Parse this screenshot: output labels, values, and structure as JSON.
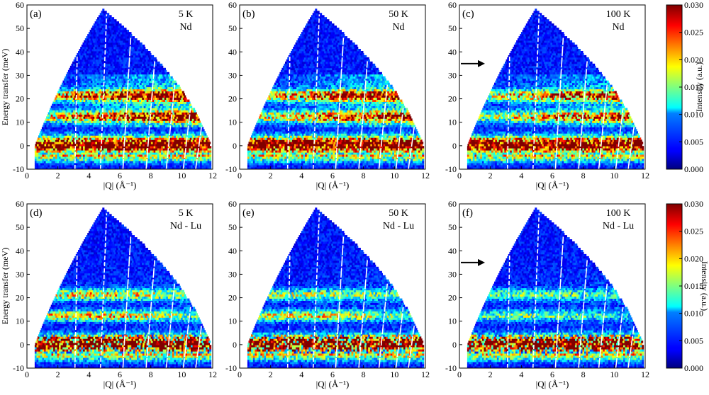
{
  "chart_data": [
    {
      "type": "heatmap",
      "panel_label": "(a)",
      "temperature": "5 K",
      "sample": "Nd",
      "xlabel": "|Q| (Å⁻¹)",
      "ylabel": "Energy transfer (meV)",
      "xlim": [
        0,
        12
      ],
      "ylim": [
        -10,
        60
      ],
      "xticks": [
        0,
        2,
        4,
        6,
        8,
        10,
        12
      ],
      "yticks": [
        -10,
        0,
        10,
        20,
        30,
        40,
        50,
        60
      ],
      "arrow_energy": null,
      "bands": [
        {
          "energy": 0,
          "intensity": 0.03
        },
        {
          "energy": 12,
          "intensity": 0.022
        },
        {
          "energy": 21,
          "intensity": 0.024
        }
      ]
    },
    {
      "type": "heatmap",
      "panel_label": "(b)",
      "temperature": "50 K",
      "sample": "Nd",
      "xlabel": "|Q| (Å⁻¹)",
      "ylabel": "",
      "xlim": [
        0,
        12
      ],
      "ylim": [
        -10,
        60
      ],
      "xticks": [
        0,
        2,
        4,
        6,
        8,
        10,
        12
      ],
      "yticks": [
        -10,
        0,
        10,
        20,
        30,
        40,
        50,
        60
      ],
      "arrow_energy": null,
      "bands": [
        {
          "energy": 0,
          "intensity": 0.03
        },
        {
          "energy": 12,
          "intensity": 0.02
        },
        {
          "energy": 21,
          "intensity": 0.021
        }
      ]
    },
    {
      "type": "heatmap",
      "panel_label": "(c)",
      "temperature": "100 K",
      "sample": "Nd",
      "xlabel": "|Q| (Å⁻¹)",
      "ylabel": "",
      "xlim": [
        0,
        12
      ],
      "ylim": [
        -10,
        60
      ],
      "xticks": [
        0,
        2,
        4,
        6,
        8,
        10,
        12
      ],
      "yticks": [
        -10,
        0,
        10,
        20,
        30,
        40,
        50,
        60
      ],
      "arrow_energy": 35,
      "bands": [
        {
          "energy": 0,
          "intensity": 0.03
        },
        {
          "energy": 12,
          "intensity": 0.017
        },
        {
          "energy": 21,
          "intensity": 0.018
        }
      ]
    },
    {
      "type": "heatmap",
      "panel_label": "(d)",
      "temperature": "5 K",
      "sample": "Nd - Lu",
      "xlabel": "|Q| (Å⁻¹)",
      "ylabel": "Energy transfer (meV)",
      "xlim": [
        0,
        12
      ],
      "ylim": [
        -10,
        60
      ],
      "xticks": [
        0,
        2,
        4,
        6,
        8,
        10,
        12
      ],
      "yticks": [
        -10,
        0,
        10,
        20,
        30,
        40,
        50,
        60
      ],
      "arrow_energy": null,
      "bands": [
        {
          "energy": 0,
          "intensity": 0.03
        },
        {
          "energy": 12,
          "intensity": 0.022
        },
        {
          "energy": 21,
          "intensity": 0.02
        }
      ]
    },
    {
      "type": "heatmap",
      "panel_label": "(e)",
      "temperature": "50 K",
      "sample": "Nd - Lu",
      "xlabel": "|Q| (Å⁻¹)",
      "ylabel": "",
      "xlim": [
        0,
        12
      ],
      "ylim": [
        -10,
        60
      ],
      "xticks": [
        0,
        2,
        4,
        6,
        8,
        10,
        12
      ],
      "yticks": [
        -10,
        0,
        10,
        20,
        30,
        40,
        50,
        60
      ],
      "arrow_energy": null,
      "bands": [
        {
          "energy": 0,
          "intensity": 0.03
        },
        {
          "energy": 12,
          "intensity": 0.02
        },
        {
          "energy": 21,
          "intensity": 0.016
        }
      ]
    },
    {
      "type": "heatmap",
      "panel_label": "(f)",
      "temperature": "100 K",
      "sample": "Nd - Lu",
      "xlabel": "|Q| (Å⁻¹)",
      "ylabel": "",
      "xlim": [
        0,
        12
      ],
      "ylim": [
        -10,
        60
      ],
      "xticks": [
        0,
        2,
        4,
        6,
        8,
        10,
        12
      ],
      "yticks": [
        -10,
        0,
        10,
        20,
        30,
        40,
        50,
        60
      ],
      "arrow_energy": 35,
      "bands": [
        {
          "energy": 0,
          "intensity": 0.03
        },
        {
          "energy": 12,
          "intensity": 0.014
        },
        {
          "energy": 21,
          "intensity": 0.013
        }
      ]
    }
  ],
  "colorbars": [
    {
      "label": "Intensity (a.u.)",
      "range": [
        0,
        0.03
      ],
      "ticks": [
        "0.000",
        "0.005",
        "0.010",
        "0.015",
        "0.020",
        "0.025",
        "0.030"
      ]
    },
    {
      "label": "Intensity (a.u.)",
      "range": [
        0,
        0.03
      ],
      "ticks": [
        "0.000",
        "0.005",
        "0.010",
        "0.015",
        "0.020",
        "0.025",
        "0.030"
      ]
    }
  ],
  "colormap": "jet",
  "colors": {
    "background": "#ffffff",
    "gap_lines": "#ffffff",
    "arrow": "#000000"
  }
}
